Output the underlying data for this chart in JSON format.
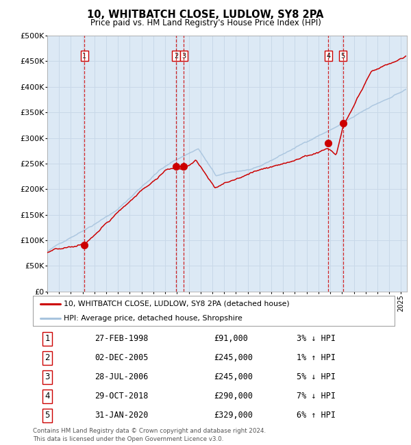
{
  "title": "10, WHITBATCH CLOSE, LUDLOW, SY8 2PA",
  "subtitle": "Price paid vs. HM Land Registry's House Price Index (HPI)",
  "plot_bg_color": "#dce9f5",
  "grid_color": "#c8d8e8",
  "ylim": [
    0,
    500000
  ],
  "yticks": [
    0,
    50000,
    100000,
    150000,
    200000,
    250000,
    300000,
    350000,
    400000,
    450000,
    500000
  ],
  "ytick_labels": [
    "£0",
    "£50K",
    "£100K",
    "£150K",
    "£200K",
    "£250K",
    "£300K",
    "£350K",
    "£400K",
    "£450K",
    "£500K"
  ],
  "xlim_start": 1995.0,
  "xlim_end": 2025.5,
  "hpi_color": "#a8c4de",
  "price_color": "#cc0000",
  "marker_color": "#cc0000",
  "vline_color": "#cc0000",
  "transactions": [
    {
      "num": 1,
      "date_label": "27-FEB-1998",
      "price": 91000,
      "year": 1998.15,
      "hpi_note": "3% ↓ HPI"
    },
    {
      "num": 2,
      "date_label": "02-DEC-2005",
      "price": 245000,
      "year": 2005.92,
      "hpi_note": "1% ↑ HPI"
    },
    {
      "num": 3,
      "date_label": "28-JUL-2006",
      "price": 245000,
      "year": 2006.57,
      "hpi_note": "5% ↓ HPI"
    },
    {
      "num": 4,
      "date_label": "29-OCT-2018",
      "price": 290000,
      "year": 2018.83,
      "hpi_note": "7% ↓ HPI"
    },
    {
      "num": 5,
      "date_label": "31-JAN-2020",
      "price": 329000,
      "year": 2020.08,
      "hpi_note": "6% ↑ HPI"
    }
  ],
  "legend_line1": "10, WHITBATCH CLOSE, LUDLOW, SY8 2PA (detached house)",
  "legend_line2": "HPI: Average price, detached house, Shropshire",
  "footer1": "Contains HM Land Registry data © Crown copyright and database right 2024.",
  "footer2": "This data is licensed under the Open Government Licence v3.0."
}
